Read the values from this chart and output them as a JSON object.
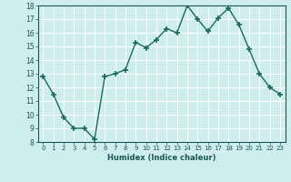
{
  "x": [
    0,
    1,
    2,
    3,
    4,
    5,
    6,
    7,
    8,
    9,
    10,
    11,
    12,
    13,
    14,
    15,
    16,
    17,
    18,
    19,
    20,
    21,
    22,
    23
  ],
  "y": [
    12.8,
    11.5,
    9.8,
    9.0,
    9.0,
    8.2,
    12.8,
    13.0,
    13.3,
    15.3,
    14.9,
    15.5,
    16.3,
    16.0,
    18.0,
    17.0,
    16.1,
    17.1,
    17.8,
    16.6,
    14.8,
    13.0,
    12.0,
    11.5
  ],
  "xlabel": "Humidex (Indice chaleur)",
  "ylim": [
    8,
    18
  ],
  "xlim": [
    -0.5,
    23.5
  ],
  "yticks": [
    8,
    9,
    10,
    11,
    12,
    13,
    14,
    15,
    16,
    17,
    18
  ],
  "xticks": [
    0,
    1,
    2,
    3,
    4,
    5,
    6,
    7,
    8,
    9,
    10,
    11,
    12,
    13,
    14,
    15,
    16,
    17,
    18,
    19,
    20,
    21,
    22,
    23
  ],
  "line_color": "#1a6b5a",
  "marker_color": "#1a6b5a",
  "bg_color": "#ceeeed",
  "grid_color": "#ffffff"
}
